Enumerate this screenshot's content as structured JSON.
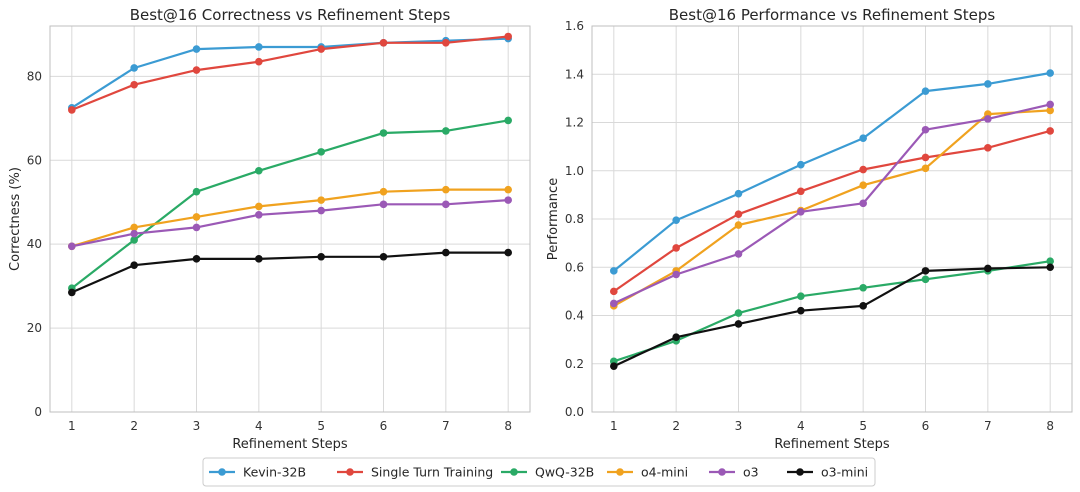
{
  "chart_data": [
    {
      "type": "line",
      "title": "Best@16 Correctness vs Refinement Steps",
      "xlabel": "Refinement Steps",
      "ylabel": "Correctness (%)",
      "x": [
        1,
        2,
        3,
        4,
        5,
        6,
        7,
        8
      ],
      "xticks": [
        "1",
        "2",
        "3",
        "4",
        "5",
        "6",
        "7",
        "8"
      ],
      "ylim": [
        0,
        92
      ],
      "yticks": [
        0,
        20,
        40,
        60,
        80
      ],
      "ytick_labels": [
        "0",
        "20",
        "40",
        "60",
        "80"
      ],
      "grid": true,
      "series": [
        {
          "name": "Kevin-32B",
          "color": "#3b9bd3",
          "values": [
            72.5,
            82,
            86.5,
            87,
            87,
            88,
            88.5,
            89
          ]
        },
        {
          "name": "Single Turn Training",
          "color": "#e0473e",
          "values": [
            72,
            78,
            81.5,
            83.5,
            86.5,
            88,
            88,
            89.5
          ]
        },
        {
          "name": "QwQ-32B",
          "color": "#2aaa66",
          "values": [
            29.5,
            41,
            52.5,
            57.5,
            62,
            66.5,
            67,
            69.5
          ]
        },
        {
          "name": "o4-mini",
          "color": "#f0a21f",
          "values": [
            39.5,
            44,
            46.5,
            49,
            50.5,
            52.5,
            53,
            53
          ]
        },
        {
          "name": "o3",
          "color": "#9b59b6",
          "values": [
            39.5,
            42.5,
            44,
            47,
            48,
            49.5,
            49.5,
            50.5
          ]
        },
        {
          "name": "o3-mini",
          "color": "#111111",
          "values": [
            28.5,
            35,
            36.5,
            36.5,
            37,
            37,
            38,
            38
          ]
        }
      ]
    },
    {
      "type": "line",
      "title": "Best@16 Performance vs Refinement Steps",
      "xlabel": "Refinement Steps",
      "ylabel": "Performance",
      "x": [
        1,
        2,
        3,
        4,
        5,
        6,
        7,
        8
      ],
      "xticks": [
        "1",
        "2",
        "3",
        "4",
        "5",
        "6",
        "7",
        "8"
      ],
      "ylim": [
        0,
        1.6
      ],
      "yticks": [
        0,
        0.2,
        0.4,
        0.6,
        0.8,
        1.0,
        1.2,
        1.4,
        1.6
      ],
      "ytick_labels": [
        "0.0",
        "0.2",
        "0.4",
        "0.6",
        "0.8",
        "1.0",
        "1.2",
        "1.4",
        "1.6"
      ],
      "grid": true,
      "series": [
        {
          "name": "Kevin-32B",
          "color": "#3b9bd3",
          "values": [
            0.585,
            0.795,
            0.905,
            1.025,
            1.135,
            1.33,
            1.36,
            1.405
          ]
        },
        {
          "name": "Single Turn Training",
          "color": "#e0473e",
          "values": [
            0.5,
            0.68,
            0.82,
            0.915,
            1.005,
            1.055,
            1.095,
            1.165
          ]
        },
        {
          "name": "QwQ-32B",
          "color": "#2aaa66",
          "values": [
            0.21,
            0.295,
            0.41,
            0.48,
            0.515,
            0.55,
            0.585,
            0.625
          ]
        },
        {
          "name": "o4-mini",
          "color": "#f0a21f",
          "values": [
            0.44,
            0.585,
            0.775,
            0.835,
            0.94,
            1.01,
            1.235,
            1.25
          ]
        },
        {
          "name": "o3",
          "color": "#9b59b6",
          "values": [
            0.45,
            0.57,
            0.655,
            0.83,
            0.865,
            1.17,
            1.215,
            1.275
          ]
        },
        {
          "name": "o3-mini",
          "color": "#111111",
          "values": [
            0.19,
            0.31,
            0.365,
            0.42,
            0.44,
            0.585,
            0.595,
            0.6
          ]
        }
      ]
    }
  ],
  "legend": {
    "placement": "bottom-center",
    "entries": [
      {
        "name": "Kevin-32B",
        "color": "#3b9bd3"
      },
      {
        "name": "Single Turn Training",
        "color": "#e0473e"
      },
      {
        "name": "QwQ-32B",
        "color": "#2aaa66"
      },
      {
        "name": "o4-mini",
        "color": "#f0a21f"
      },
      {
        "name": "o3",
        "color": "#9b59b6"
      },
      {
        "name": "o3-mini",
        "color": "#111111"
      }
    ]
  }
}
